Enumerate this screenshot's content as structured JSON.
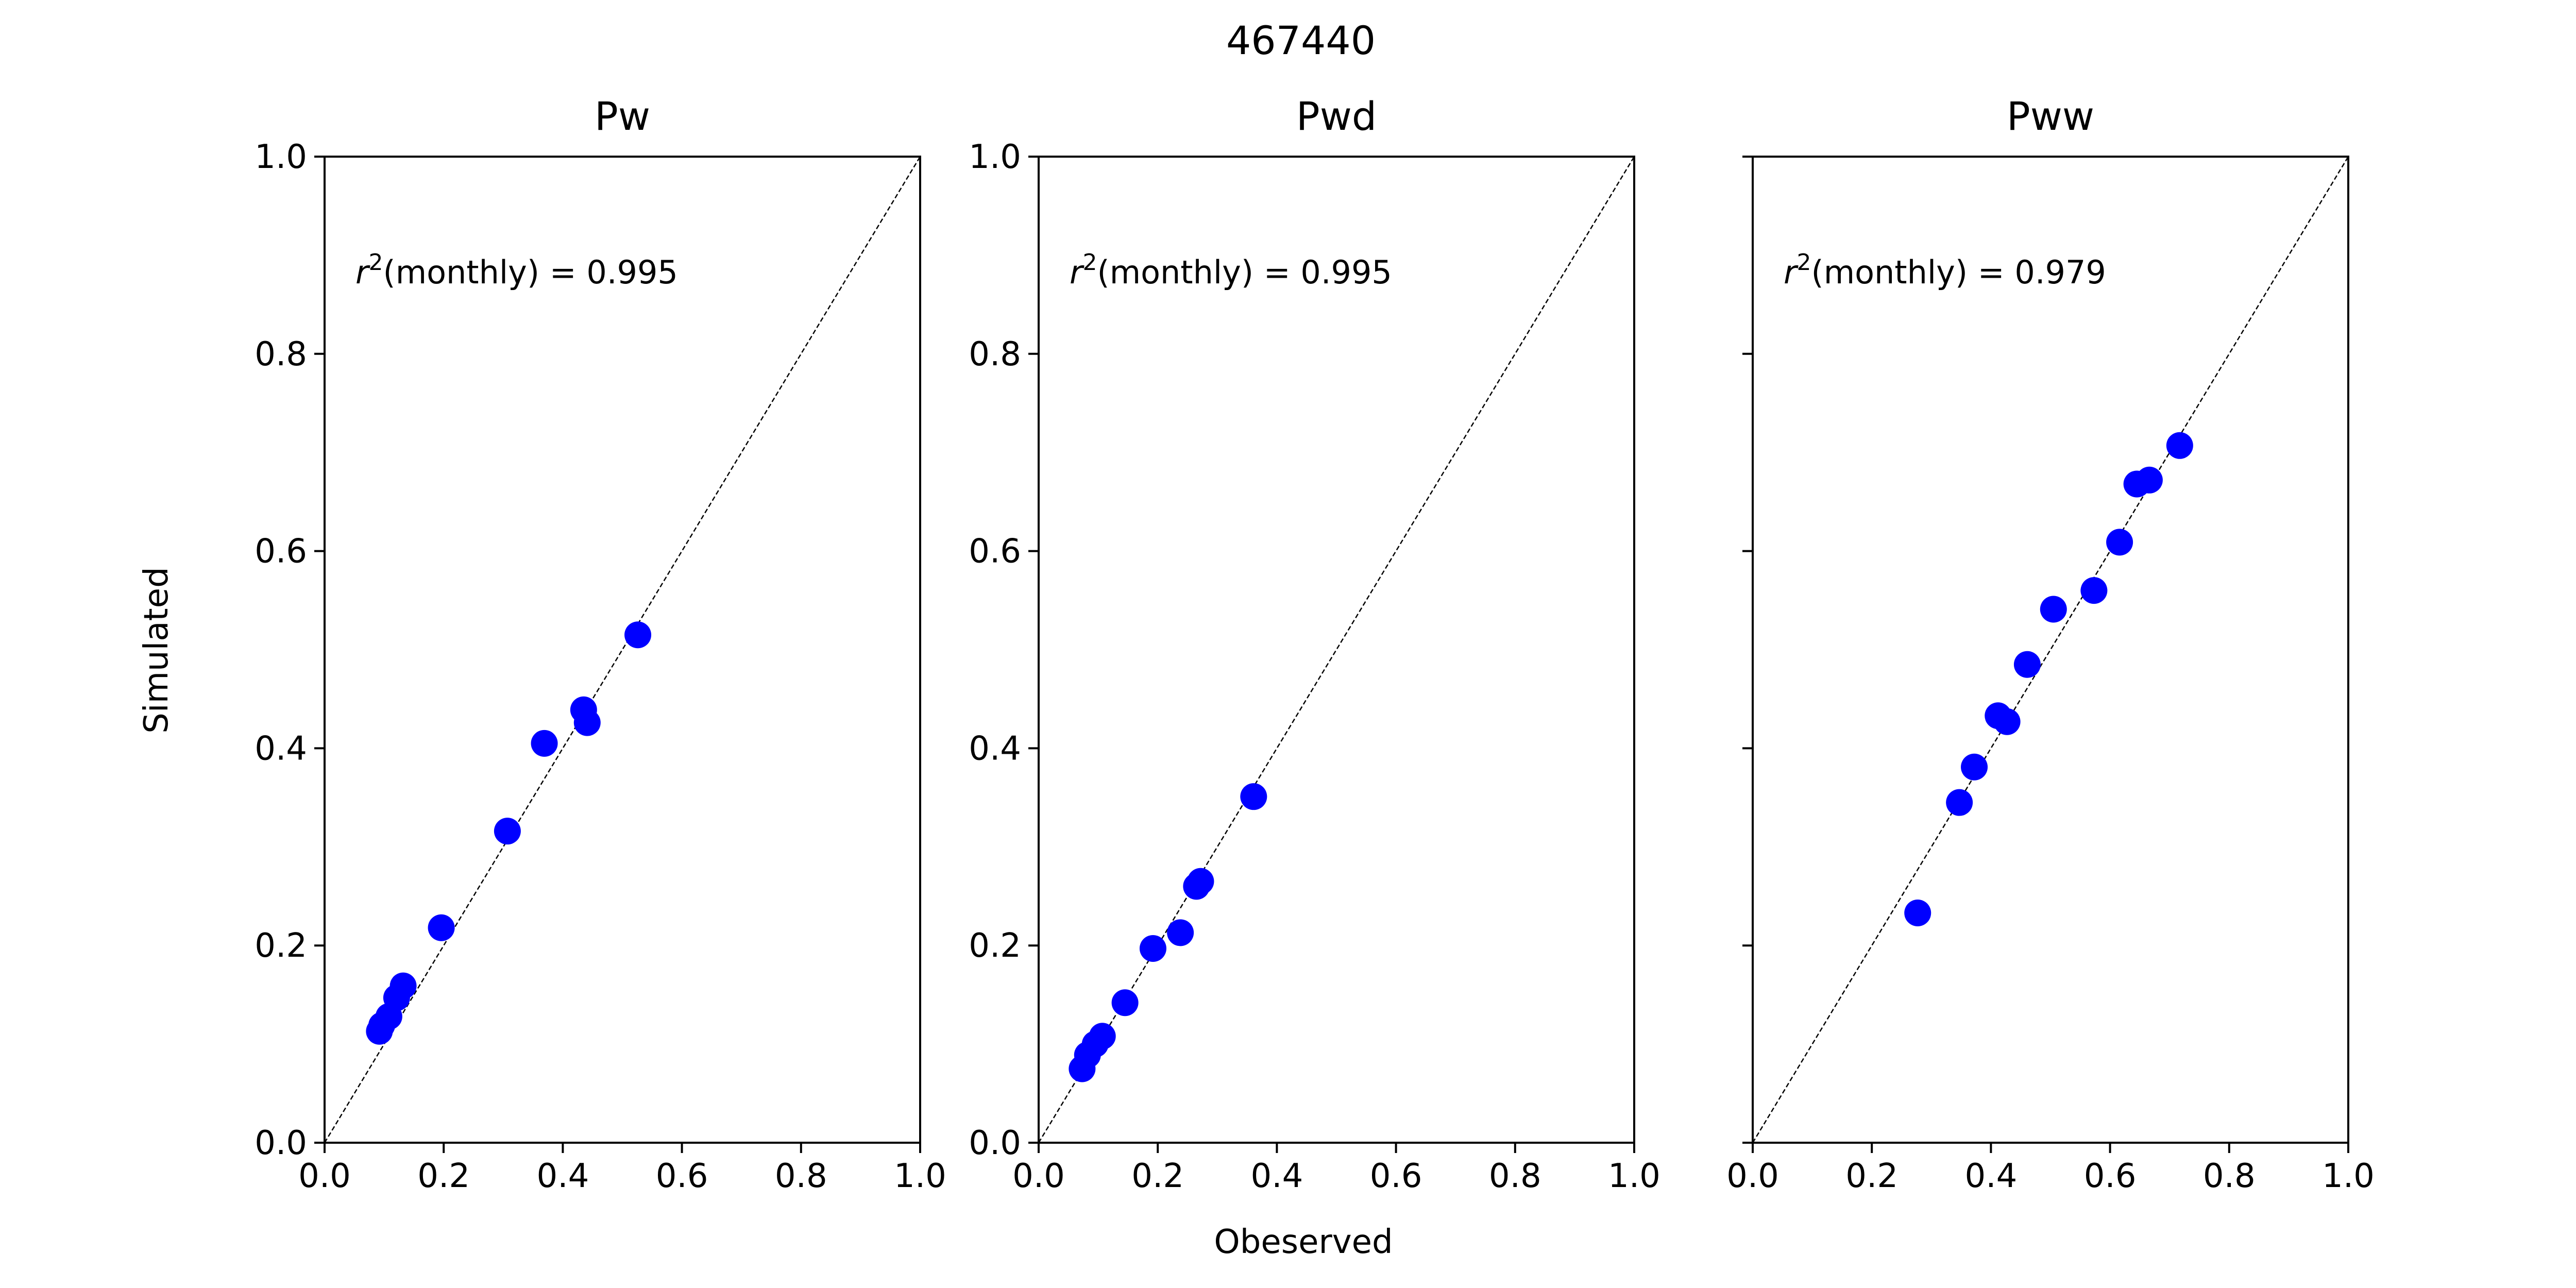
{
  "figure": {
    "suptitle": "467440",
    "xlabel": "Obeserved",
    "ylabel": "Simulated",
    "marker_color": "#0000ff",
    "line_color": "#000000"
  },
  "chart_data": [
    {
      "type": "scatter",
      "title": "Pw",
      "annotation": {
        "r2_symbol": "r",
        "r2_exp": "2",
        "rest": "(monthly) = 0.995"
      },
      "xlim": [
        0,
        1
      ],
      "ylim": [
        0,
        1
      ],
      "xticks": [
        "0.0",
        "0.2",
        "0.4",
        "0.6",
        "0.8",
        "1.0"
      ],
      "yticks": [
        "0.0",
        "0.2",
        "0.4",
        "0.6",
        "0.8",
        "1.0"
      ],
      "reference_line": "y = x",
      "points": [
        {
          "x": 0.092,
          "y": 0.113
        },
        {
          "x": 0.096,
          "y": 0.119
        },
        {
          "x": 0.108,
          "y": 0.128
        },
        {
          "x": 0.121,
          "y": 0.147
        },
        {
          "x": 0.132,
          "y": 0.159
        },
        {
          "x": 0.196,
          "y": 0.218
        },
        {
          "x": 0.307,
          "y": 0.316
        },
        {
          "x": 0.369,
          "y": 0.405
        },
        {
          "x": 0.435,
          "y": 0.439
        },
        {
          "x": 0.441,
          "y": 0.426
        },
        {
          "x": 0.526,
          "y": 0.515
        }
      ]
    },
    {
      "type": "scatter",
      "title": "Pwd",
      "annotation": {
        "r2_symbol": "r",
        "r2_exp": "2",
        "rest": "(monthly) = 0.995"
      },
      "xlim": [
        0,
        1
      ],
      "ylim": [
        0,
        1
      ],
      "xticks": [
        "0.0",
        "0.2",
        "0.4",
        "0.6",
        "0.8",
        "1.0"
      ],
      "yticks": [
        "0.0",
        "0.2",
        "0.4",
        "0.6",
        "0.8",
        "1.0"
      ],
      "reference_line": "y = x",
      "points": [
        {
          "x": 0.073,
          "y": 0.075
        },
        {
          "x": 0.082,
          "y": 0.089
        },
        {
          "x": 0.095,
          "y": 0.1
        },
        {
          "x": 0.107,
          "y": 0.108
        },
        {
          "x": 0.145,
          "y": 0.142
        },
        {
          "x": 0.192,
          "y": 0.197
        },
        {
          "x": 0.238,
          "y": 0.213
        },
        {
          "x": 0.265,
          "y": 0.26
        },
        {
          "x": 0.272,
          "y": 0.265
        },
        {
          "x": 0.361,
          "y": 0.351
        }
      ]
    },
    {
      "type": "scatter",
      "title": "Pww",
      "annotation": {
        "r2_symbol": "r",
        "r2_exp": "2",
        "rest": "(monthly) = 0.979"
      },
      "xlim": [
        0,
        1
      ],
      "ylim": [
        0,
        1
      ],
      "xticks": [
        "0.0",
        "0.2",
        "0.4",
        "0.6",
        "0.8",
        "1.0"
      ],
      "yticks": [],
      "reference_line": "y = x",
      "points": [
        {
          "x": 0.277,
          "y": 0.233
        },
        {
          "x": 0.347,
          "y": 0.345
        },
        {
          "x": 0.372,
          "y": 0.381
        },
        {
          "x": 0.412,
          "y": 0.433
        },
        {
          "x": 0.427,
          "y": 0.427
        },
        {
          "x": 0.461,
          "y": 0.485
        },
        {
          "x": 0.505,
          "y": 0.541
        },
        {
          "x": 0.573,
          "y": 0.56
        },
        {
          "x": 0.616,
          "y": 0.609
        },
        {
          "x": 0.645,
          "y": 0.668
        },
        {
          "x": 0.666,
          "y": 0.672
        },
        {
          "x": 0.717,
          "y": 0.707
        }
      ]
    }
  ]
}
